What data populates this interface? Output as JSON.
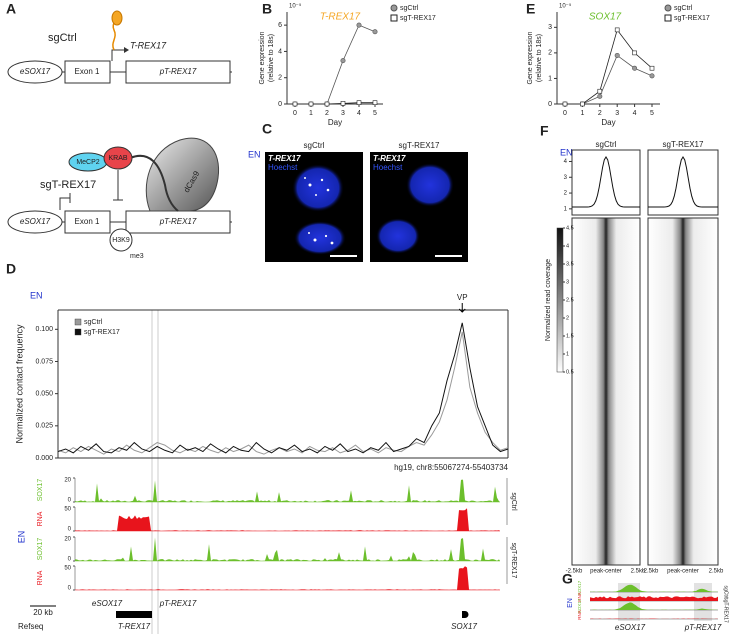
{
  "figure": {
    "panel_labels": [
      "A",
      "B",
      "C",
      "D",
      "E",
      "F",
      "G"
    ],
    "A": {
      "top_condition": "sgCtrl",
      "bottom_condition": "sgT-REX17",
      "transcript": "T-REX17",
      "enhancer": "eSOX17",
      "exon": "Exon 1",
      "promoter": "pT-REX17",
      "proteins": [
        "MeCP2",
        "KRAB",
        "dCas9"
      ],
      "histone": "H3K9",
      "modification": "me3"
    },
    "C": {
      "cell_type": "EN",
      "conditions": [
        "sgCtrl",
        "sgT-REX17"
      ],
      "channels": [
        "T-REX17",
        "Hoechst"
      ]
    },
    "D": {
      "cell_type": "EN",
      "viewpoint": "VP",
      "region": "hg19, chr8:55067274-55403734",
      "tracks": [
        {
          "target": "SOX17",
          "max": 20,
          "min": 0
        },
        {
          "target": "RNA",
          "max": 50,
          "min": 0
        },
        {
          "target": "SOX17",
          "max": 20,
          "min": 0
        },
        {
          "target": "RNA",
          "max": 50,
          "min": 0
        }
      ],
      "conditions": [
        "sgCtrl",
        "sgT-REX17"
      ],
      "scale_bar": "20 kb",
      "refseq": "Refseq",
      "features": [
        "eSOX17",
        "pT-REX17",
        "T-REX17",
        "SOX17"
      ]
    },
    "F": {
      "cell_type": "EN",
      "conditions": [
        "sgCtrl",
        "sgT-REX17"
      ],
      "profile_ylim": [
        0.8,
        4.6
      ],
      "profile_yticks": [
        1,
        2,
        3,
        4
      ],
      "colorbar_lim": [
        0.5,
        4.5
      ],
      "colorbar_ticks": [
        0.5,
        1,
        1.5,
        2,
        2.5,
        3,
        3.5,
        4,
        4.5
      ],
      "colorbar_label": "Normalized read coverage",
      "x_labels": [
        "-2.5kb",
        "peak-center",
        "2.5kb"
      ]
    },
    "G": {
      "cell_type": "EN",
      "tracks": [
        "SOX17",
        "RNA",
        "SOX17",
        "RNA"
      ],
      "conditions": [
        "sgCtrl",
        "sgT-REX17"
      ],
      "features": [
        "eSOX17",
        "pT-REX17"
      ]
    }
  },
  "chart_data": [
    {
      "type": "line",
      "title": "T-REX17",
      "title_color": "#f5a623",
      "axis_note": "10⁻⁵",
      "categories": [
        "0",
        "1",
        "2",
        "3",
        "4",
        "5"
      ],
      "xlabel": "Day",
      "ylabel": [
        "Gene expression",
        "(relative to 18s)"
      ],
      "ylim": [
        0,
        7
      ],
      "yticks": [
        0,
        2,
        4,
        6
      ],
      "series": [
        {
          "name": "sgCtrl",
          "color": "#555555",
          "marker": "circle",
          "values": [
            0,
            0,
            0,
            3.3,
            6,
            5.5
          ]
        },
        {
          "name": "sgT-REX17",
          "color": "#222222",
          "marker": "square",
          "values": [
            0,
            0,
            0,
            0.05,
            0.1,
            0.1
          ]
        }
      ]
    },
    {
      "type": "line",
      "title": "SOX17",
      "title_color": "#6cbf2c",
      "axis_note": "10⁻⁵",
      "categories": [
        "0",
        "1",
        "2",
        "3",
        "4",
        "5"
      ],
      "xlabel": "Day",
      "ylabel": [
        "Gene expression",
        "(relative to 18s)"
      ],
      "ylim": [
        0,
        3.6
      ],
      "yticks": [
        0,
        1,
        2,
        3
      ],
      "series": [
        {
          "name": "sgCtrl",
          "color": "#555555",
          "marker": "circle",
          "values": [
            0,
            0,
            0.3,
            1.9,
            1.4,
            1.1
          ]
        },
        {
          "name": "sgT-REX17",
          "color": "#222222",
          "marker": "square",
          "values": [
            0,
            0,
            0.5,
            2.9,
            2.0,
            1.4
          ]
        }
      ]
    },
    {
      "type": "line",
      "ylabel": [
        "Normalized contact frequency"
      ],
      "ylim": [
        0,
        0.115
      ],
      "yticks": [
        {
          "value": 0,
          "label": "0.000"
        },
        0.025,
        {
          "value": 0.05,
          "label": "0.050"
        },
        0.075,
        {
          "value": 0.1,
          "label": "0.100"
        }
      ],
      "series": [
        {
          "name": "sgCtrl",
          "color": "#9a9a9a",
          "marker": "none",
          "values": [
            0.006,
            0.004,
            0.008,
            0.005,
            0.009,
            0.006,
            0.003,
            0.007,
            0.005,
            0.01,
            0.006,
            0.004,
            0.008,
            0.012,
            0.01,
            0.006,
            0.004,
            0.007,
            0.005,
            0.009,
            0.006,
            0.004,
            0.008,
            0.005,
            0.007,
            0.01,
            0.005,
            0.003,
            0.006,
            0.008,
            0.005,
            0.007,
            0.004,
            0.009,
            0.006,
            0.005,
            0.008,
            0.004,
            0.006,
            0.01,
            0.005,
            0.007,
            0.004,
            0.008,
            0.006,
            0.005,
            0.009,
            0.012,
            0.01,
            0.018,
            0.028,
            0.045,
            0.07,
            0.098,
            0.055,
            0.035,
            0.02,
            0.012,
            0.006,
            0.008
          ]
        },
        {
          "name": "sgT-REX17",
          "color": "#111111",
          "marker": "none",
          "values": [
            0.005,
            0.007,
            0.004,
            0.009,
            0.006,
            0.011,
            0.005,
            0.004,
            0.008,
            0.006,
            0.012,
            0.007,
            0.005,
            0.009,
            0.006,
            0.004,
            0.01,
            0.006,
            0.008,
            0.005,
            0.011,
            0.007,
            0.004,
            0.009,
            0.006,
            0.005,
            0.012,
            0.007,
            0.004,
            0.008,
            0.006,
            0.01,
            0.005,
            0.007,
            0.004,
            0.009,
            0.006,
            0.011,
            0.005,
            0.007,
            0.004,
            0.008,
            0.006,
            0.012,
            0.005,
            0.007,
            0.009,
            0.015,
            0.012,
            0.025,
            0.035,
            0.06,
            0.08,
            0.105,
            0.07,
            0.04,
            0.025,
            0.01,
            0.005,
            0.007
          ]
        }
      ]
    }
  ]
}
